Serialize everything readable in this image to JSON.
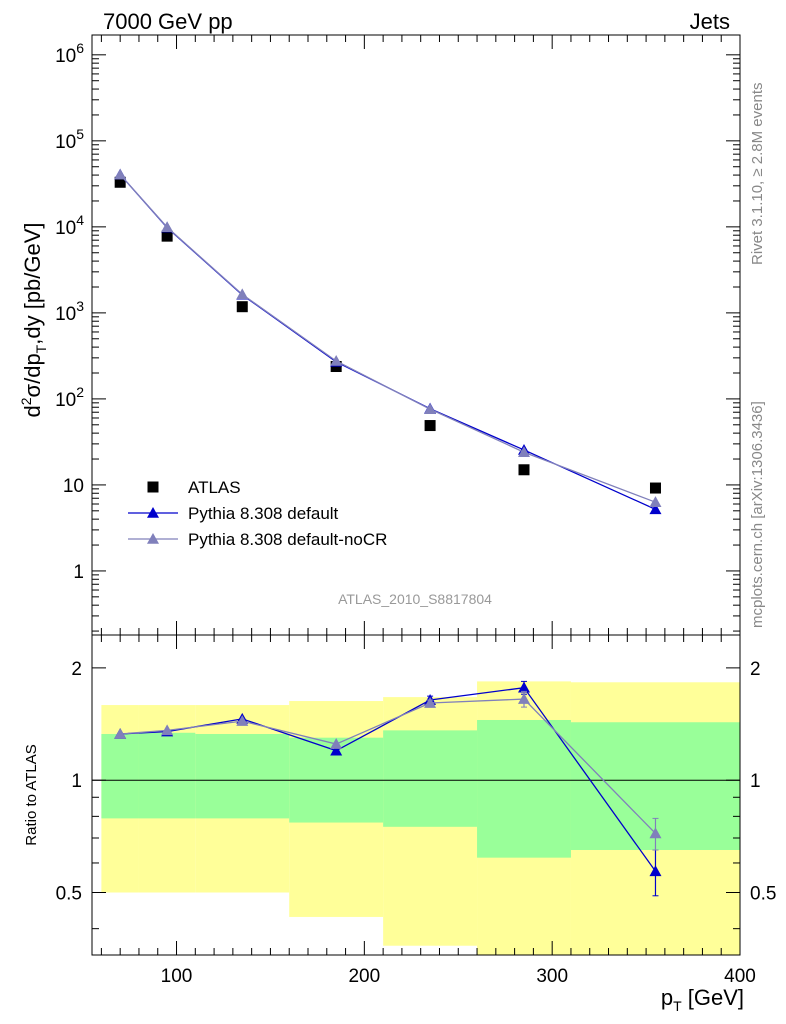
{
  "header": {
    "left": "7000 GeV pp",
    "right": "Jets"
  },
  "side_text": {
    "version": "Rivet 3.1.10, ≥ 2.8M events",
    "source": "mcplots.cern.ch [arXiv:1306.3436]"
  },
  "analysis_id": "ATLAS_2010_S8817804",
  "colors": {
    "data": "#000000",
    "default": "#0000cc",
    "nocr": "#8080bb",
    "band_outer": "#ffff99",
    "band_inner": "#99ff99",
    "ratio_line": "#000000"
  },
  "chart_data": [
    {
      "type": "scatter",
      "ylabel": "d²σ/dp_T,dy [pb/GeV]",
      "yscale": "log",
      "ylim": [
        0.18,
        1700000
      ],
      "xlim": [
        55,
        400
      ],
      "y_ticks": [
        {
          "value": 1,
          "label": "1"
        },
        {
          "value": 10,
          "label": "10"
        },
        {
          "value": 100,
          "label": "10",
          "exp": "2"
        },
        {
          "value": 1000,
          "label": "10",
          "exp": "3"
        },
        {
          "value": 10000,
          "label": "10",
          "exp": "4"
        },
        {
          "value": 100000,
          "label": "10",
          "exp": "5"
        },
        {
          "value": 1000000,
          "label": "10",
          "exp": "6"
        }
      ],
      "legend": [
        "ATLAS",
        "Pythia 8.308 default",
        "Pythia 8.308 default-noCR"
      ],
      "series": [
        {
          "name": "ATLAS",
          "marker": "square",
          "x": [
            70,
            95,
            135,
            185,
            235,
            285,
            355
          ],
          "y": [
            33000,
            7800,
            1180,
            238,
            49,
            15,
            9.2
          ]
        },
        {
          "name": "Pythia 8.308 default",
          "marker": "triangle",
          "x": [
            70,
            95,
            135,
            185,
            235,
            285,
            355
          ],
          "y": [
            40500,
            9800,
            1620,
            270,
            77,
            25.5,
            5.2
          ]
        },
        {
          "name": "Pythia 8.308 default-noCR",
          "marker": "triangle",
          "x": [
            70,
            95,
            135,
            185,
            235,
            285,
            355
          ],
          "y": [
            40500,
            9900,
            1640,
            276,
            76,
            24,
            6.3
          ]
        }
      ]
    },
    {
      "type": "line",
      "xlabel": "p_T [GeV]",
      "ylabel": "Ratio to ATLAS",
      "yscale": "log",
      "ylim": [
        0.34,
        2.45
      ],
      "xlim": [
        55,
        400
      ],
      "x_ticks": [
        100,
        200,
        300,
        400
      ],
      "y_ticks": [
        {
          "value": 0.5,
          "label": "0.5"
        },
        {
          "value": 1,
          "label": "1"
        },
        {
          "value": 2,
          "label": "2"
        }
      ],
      "bins": [
        [
          60,
          80
        ],
        [
          80,
          110
        ],
        [
          110,
          160
        ],
        [
          160,
          210
        ],
        [
          210,
          260
        ],
        [
          260,
          310
        ],
        [
          310,
          400
        ]
      ],
      "band_inner": {
        "lo": [
          0.79,
          0.79,
          0.79,
          0.77,
          0.75,
          0.62,
          0.65
        ],
        "hi": [
          1.33,
          1.34,
          1.33,
          1.3,
          1.36,
          1.45,
          1.43
        ]
      },
      "band_outer": {
        "lo": [
          0.5,
          0.5,
          0.5,
          0.43,
          0.36,
          0.34,
          0.34
        ],
        "hi": [
          1.59,
          1.59,
          1.59,
          1.63,
          1.67,
          1.84,
          1.83
        ]
      },
      "series": [
        {
          "name": "Pythia 8.308 default",
          "x": [
            70,
            95,
            135,
            185,
            235,
            285,
            355
          ],
          "y": [
            1.33,
            1.35,
            1.46,
            1.2,
            1.64,
            1.77,
            0.57
          ],
          "err": [
            0.01,
            0.01,
            0.01,
            0.01,
            0.04,
            0.07,
            0.08
          ]
        },
        {
          "name": "Pythia 8.308 default-noCR",
          "x": [
            70,
            95,
            135,
            185,
            235,
            285,
            355
          ],
          "y": [
            1.33,
            1.36,
            1.44,
            1.25,
            1.61,
            1.65,
            0.72
          ],
          "err": [
            0.01,
            0.01,
            0.01,
            0.01,
            0.03,
            0.08,
            0.07
          ]
        }
      ]
    }
  ]
}
